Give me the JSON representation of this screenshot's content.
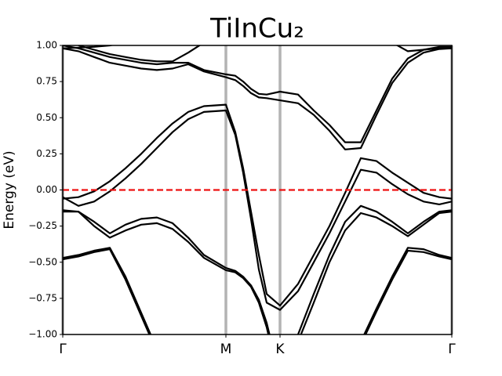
{
  "chart_data": {
    "type": "line",
    "title": "TiInCu₂",
    "y_label": "Energy (eV)",
    "color": "#000000",
    "x": [
      0,
      0.2,
      0.4,
      0.6,
      0.8,
      1.0,
      1.2,
      1.4,
      1.6,
      1.8,
      2.08,
      2.2,
      2.3,
      2.4,
      2.5,
      2.6,
      2.77,
      3.0,
      3.2,
      3.4,
      3.6,
      3.8,
      4.0,
      4.2,
      4.4,
      4.6,
      4.8,
      4.96
    ],
    "series": [
      {
        "values": [
          0.98,
          0.985,
          0.99,
          1.0,
          1.02,
          null,
          null,
          null,
          null,
          null,
          null,
          null,
          null,
          null,
          null,
          null,
          null,
          null,
          null,
          null,
          null,
          null,
          null,
          1.02,
          0.96,
          0.97,
          0.98,
          0.98
        ]
      },
      {
        "values": [
          null,
          1.0,
          0.97,
          0.94,
          0.92,
          0.9,
          0.89,
          0.89,
          0.95,
          1.02,
          null,
          null,
          null,
          null,
          null,
          null,
          null,
          null,
          null,
          null,
          null,
          null,
          null,
          null,
          null,
          null,
          null,
          null
        ]
      },
      {
        "values": [
          1.0,
          0.98,
          0.95,
          0.92,
          0.9,
          0.88,
          0.87,
          0.88,
          0.88,
          0.83,
          0.8,
          0.79,
          0.75,
          0.7,
          0.665,
          0.66,
          0.68,
          0.66,
          0.55,
          0.45,
          0.33,
          0.33,
          0.55,
          0.77,
          0.91,
          0.97,
          0.99,
          0.99
        ]
      },
      {
        "values": [
          0.98,
          0.96,
          0.92,
          0.88,
          0.86,
          0.84,
          0.83,
          0.84,
          0.87,
          0.82,
          0.78,
          0.76,
          0.72,
          0.67,
          0.64,
          0.635,
          0.62,
          0.6,
          0.52,
          0.41,
          0.28,
          0.29,
          0.52,
          0.74,
          0.88,
          0.95,
          0.975,
          0.98
        ]
      },
      {
        "values": [
          -0.06,
          -0.05,
          -0.01,
          0.06,
          0.15,
          0.25,
          0.36,
          0.46,
          0.54,
          0.58,
          0.59,
          0.4,
          0.15,
          -0.15,
          -0.45,
          -0.72,
          -0.8,
          -0.65,
          -0.45,
          -0.25,
          -0.02,
          0.22,
          0.2,
          0.12,
          0.05,
          -0.02,
          -0.05,
          -0.06
        ]
      },
      {
        "values": [
          -0.05,
          -0.11,
          -0.08,
          -0.01,
          0.08,
          0.18,
          0.29,
          0.4,
          0.49,
          0.54,
          0.55,
          0.38,
          0.12,
          -0.2,
          -0.55,
          -0.78,
          -0.83,
          -0.7,
          -0.5,
          -0.3,
          -0.08,
          0.14,
          0.12,
          0.04,
          -0.03,
          -0.08,
          -0.1,
          -0.08
        ]
      },
      {
        "values": [
          -0.15,
          -0.15,
          -0.22,
          -0.3,
          -0.24,
          -0.2,
          -0.19,
          -0.23,
          -0.33,
          -0.45,
          -0.54,
          -0.56,
          -0.6,
          -0.66,
          -0.76,
          -0.92,
          -1.3,
          -1.0,
          -0.72,
          -0.45,
          -0.22,
          -0.11,
          -0.15,
          -0.22,
          -0.3,
          -0.22,
          -0.15,
          -0.14
        ]
      },
      {
        "values": [
          -0.14,
          -0.15,
          -0.25,
          -0.33,
          -0.28,
          -0.24,
          -0.23,
          -0.27,
          -0.36,
          -0.47,
          -0.555,
          -0.57,
          -0.61,
          -0.67,
          -0.78,
          -0.95,
          -1.35,
          -1.05,
          -0.78,
          -0.5,
          -0.28,
          -0.16,
          -0.19,
          -0.25,
          -0.32,
          -0.24,
          -0.16,
          -0.15
        ]
      },
      {
        "values": [
          -0.47,
          -0.45,
          -0.42,
          -0.4,
          -0.6,
          -0.85,
          -1.1,
          null,
          null,
          null,
          null,
          null,
          null,
          null,
          null,
          null,
          null,
          null,
          null,
          null,
          null,
          -1.05,
          -0.82,
          -0.6,
          -0.4,
          -0.41,
          -0.45,
          -0.47
        ]
      },
      {
        "values": [
          -0.48,
          -0.46,
          -0.43,
          -0.41,
          -0.62,
          -0.87,
          -1.12,
          null,
          null,
          null,
          null,
          null,
          null,
          null,
          null,
          null,
          null,
          null,
          null,
          null,
          null,
          -1.07,
          -0.84,
          -0.62,
          -0.42,
          -0.43,
          -0.46,
          -0.48
        ]
      }
    ],
    "fermi_level": {
      "y": 0,
      "color": "#ee1111",
      "style": "dashed"
    },
    "xlim": [
      0,
      4.96
    ],
    "xticks": [
      {
        "value": 0,
        "label": "Γ"
      },
      {
        "value": 2.08,
        "label": "M"
      },
      {
        "value": 2.77,
        "label": "K"
      },
      {
        "value": 4.96,
        "label": "Γ"
      }
    ],
    "xtick_line_color": "#b3b3b3",
    "ylim": [
      -1,
      1
    ],
    "yticks": [
      {
        "value": -1,
        "label": "−1.00"
      },
      {
        "value": -0.75,
        "label": "−0.75"
      },
      {
        "value": -0.5,
        "label": "−0.50"
      },
      {
        "value": -0.25,
        "label": "−0.25"
      },
      {
        "value": 0,
        "label": "0.00"
      },
      {
        "value": 0.25,
        "label": "0.25"
      },
      {
        "value": 0.5,
        "label": "0.50"
      },
      {
        "value": 0.75,
        "label": "0.75"
      },
      {
        "value": 1,
        "label": "1.00"
      }
    ]
  }
}
